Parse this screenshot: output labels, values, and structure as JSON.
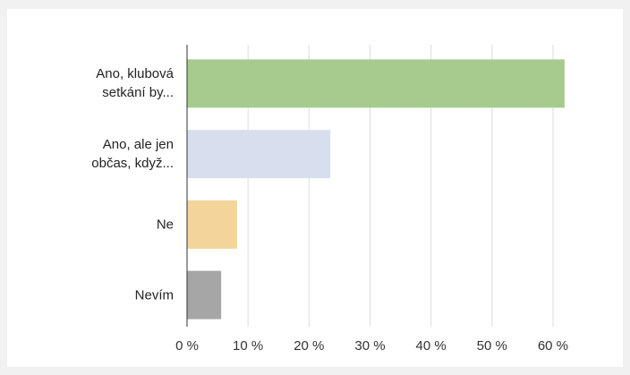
{
  "chart_data": {
    "type": "bar",
    "orientation": "horizontal",
    "categories": [
      "Ano, klubová\nsetkání by...",
      "Ano, ale jen\nobčas, když...",
      "Ne",
      "Nevím"
    ],
    "values": [
      61.9,
      23.5,
      8.2,
      5.6
    ],
    "colors": [
      "#a7cb8e",
      "#d7dfef",
      "#f3d59c",
      "#a6a6a6"
    ],
    "xlim": [
      0,
      65
    ],
    "xticks": [
      {
        "value": 0,
        "label": "0 %"
      },
      {
        "value": 10,
        "label": "10 %"
      },
      {
        "value": 20,
        "label": "20 %"
      },
      {
        "value": 30,
        "label": "30 %"
      },
      {
        "value": 40,
        "label": "40 %"
      },
      {
        "value": 50,
        "label": "50 %"
      },
      {
        "value": 60,
        "label": "60 %"
      }
    ],
    "grid": true
  }
}
